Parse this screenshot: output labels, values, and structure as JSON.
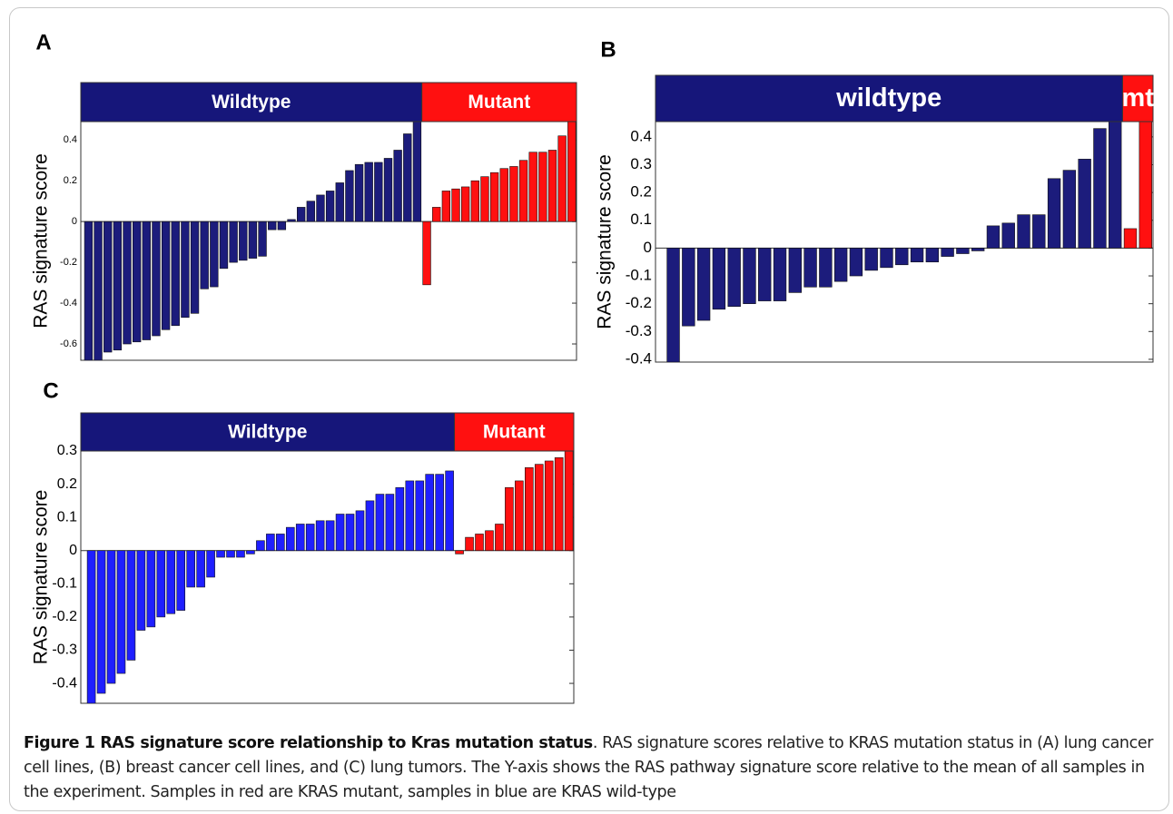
{
  "chart_data": [
    {
      "type": "bar",
      "label": "A",
      "ylabel": "RAS signature score",
      "ylim": [
        -0.68,
        0.49
      ],
      "yticks": [
        -0.6,
        -0.4,
        -0.2,
        0,
        0.2,
        0.4
      ],
      "series": [
        {
          "name": "Wildtype",
          "color": "#1c1c7c",
          "values": [
            -0.68,
            -0.68,
            -0.64,
            -0.63,
            -0.6,
            -0.59,
            -0.58,
            -0.56,
            -0.53,
            -0.51,
            -0.47,
            -0.45,
            -0.33,
            -0.32,
            -0.23,
            -0.2,
            -0.19,
            -0.18,
            -0.17,
            -0.04,
            -0.04,
            0.01,
            0.07,
            0.1,
            0.13,
            0.15,
            0.19,
            0.25,
            0.28,
            0.29,
            0.29,
            0.31,
            0.35,
            0.43,
            0.55
          ]
        },
        {
          "name": "Mutant",
          "color": "#ff1010",
          "values": [
            -0.31,
            0.07,
            0.15,
            0.16,
            0.17,
            0.2,
            0.22,
            0.24,
            0.26,
            0.27,
            0.3,
            0.34,
            0.34,
            0.35,
            0.42,
            0.55
          ]
        }
      ]
    },
    {
      "type": "bar",
      "label": "B",
      "ylabel": "RAS signature score",
      "ylim": [
        -0.41,
        0.455
      ],
      "yticks": [
        -0.4,
        -0.3,
        -0.2,
        -0.1,
        0,
        0.1,
        0.2,
        0.3,
        0.4
      ],
      "series": [
        {
          "name": "wildtype",
          "color": "#1c1c7c",
          "values": [
            -0.41,
            -0.28,
            -0.26,
            -0.22,
            -0.21,
            -0.2,
            -0.19,
            -0.19,
            -0.16,
            -0.14,
            -0.14,
            -0.12,
            -0.1,
            -0.08,
            -0.07,
            -0.06,
            -0.05,
            -0.05,
            -0.03,
            -0.02,
            -0.01,
            0.08,
            0.09,
            0.12,
            0.12,
            0.25,
            0.28,
            0.32,
            0.43,
            0.46
          ]
        },
        {
          "name": "mt",
          "color": "#ff1010",
          "values": [
            0.07,
            0.46
          ]
        }
      ]
    },
    {
      "type": "bar",
      "label": "C",
      "ylabel": "RAS signature score",
      "ylim": [
        -0.46,
        0.3
      ],
      "yticks": [
        -0.4,
        -0.3,
        -0.2,
        -0.1,
        0,
        0.1,
        0.2,
        0.3
      ],
      "series": [
        {
          "name": "Wildtype",
          "color": "#1f1fff",
          "values": [
            -0.46,
            -0.43,
            -0.4,
            -0.37,
            -0.33,
            -0.24,
            -0.23,
            -0.2,
            -0.19,
            -0.18,
            -0.11,
            -0.11,
            -0.08,
            -0.02,
            -0.02,
            -0.02,
            -0.01,
            0.03,
            0.05,
            0.05,
            0.07,
            0.08,
            0.08,
            0.09,
            0.09,
            0.11,
            0.11,
            0.12,
            0.15,
            0.17,
            0.17,
            0.19,
            0.21,
            0.21,
            0.23,
            0.23,
            0.24
          ]
        },
        {
          "name": "Mutant",
          "color": "#ff1010",
          "values": [
            -0.01,
            0.04,
            0.05,
            0.06,
            0.08,
            0.19,
            0.21,
            0.25,
            0.26,
            0.27,
            0.28,
            0.3
          ]
        }
      ]
    }
  ],
  "caption": {
    "title": "Figure 1 RAS signature score relationship to Kras mutation status",
    "text": ". RAS signature scores relative to KRAS mutation status in (A) lung cancer cell lines, (B) breast cancer cell lines, and (C) lung tumors. The Y-axis shows the RAS pathway signature score relative to the mean of all samples in the experiment. Samples in red are KRAS mutant, samples in blue are KRAS wild-type"
  }
}
